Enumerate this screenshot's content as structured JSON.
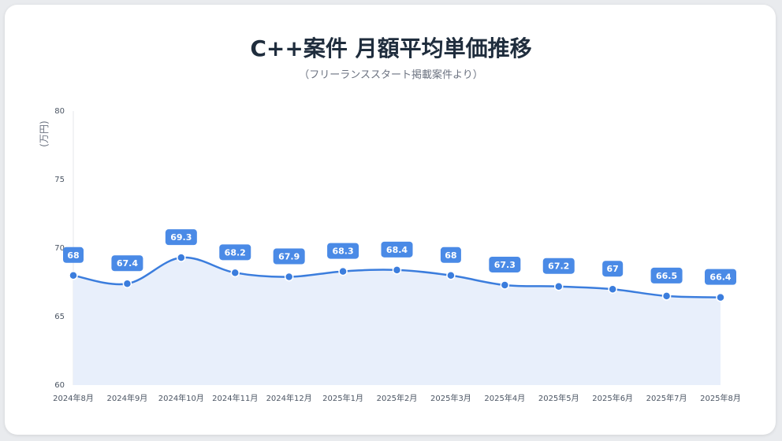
{
  "title": "C++案件 月額平均単価推移",
  "subtitle": "（フリーランススタート掲載案件より）",
  "chart_data": {
    "type": "line",
    "title": "C++案件 月額平均単価推移",
    "subtitle": "（フリーランススタート掲載案件より）",
    "ylabel": "(万円)",
    "xlabel": "",
    "ylim": [
      60,
      80
    ],
    "yticks": [
      60,
      65,
      70,
      75,
      80
    ],
    "grid": false,
    "area_fill": true,
    "smooth": true,
    "categories": [
      "2024年8月",
      "2024年9月",
      "2024年10月",
      "2024年11月",
      "2024年12月",
      "2025年1月",
      "2025年2月",
      "2025年3月",
      "2025年4月",
      "2025年5月",
      "2025年6月",
      "2025年7月",
      "2025年8月"
    ],
    "series": [
      {
        "values": [
          68,
          67.4,
          69.3,
          68.2,
          67.9,
          68.3,
          68.4,
          68,
          67.3,
          67.2,
          67,
          66.5,
          66.4
        ],
        "color": "#3b7ddd",
        "fill_color": "#e8effb",
        "label_color": "#4a8ae6"
      }
    ]
  }
}
